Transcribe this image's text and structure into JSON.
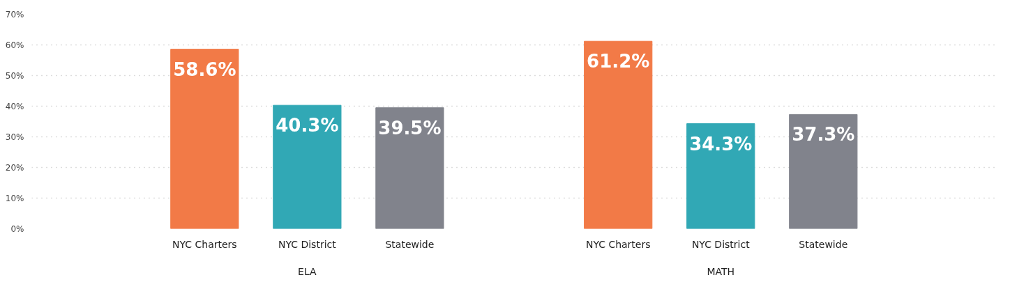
{
  "chart_data": {
    "type": "bar",
    "categories": [
      "ELA",
      "MATH"
    ],
    "series": [
      {
        "name": "NYC Charters",
        "color": "#f27a47",
        "values": [
          58.6,
          61.2
        ],
        "value_labels": [
          "58.6%",
          "61.2%"
        ]
      },
      {
        "name": "NYC District",
        "color": "#31a8b5",
        "values": [
          40.3,
          34.3
        ],
        "value_labels": [
          "40.3%",
          "34.3%"
        ]
      },
      {
        "name": "Statewide",
        "color": "#81838c",
        "values": [
          39.5,
          37.3
        ],
        "value_labels": [
          "39.5%",
          "37.3%"
        ]
      }
    ],
    "ylim": [
      0,
      70
    ],
    "yticks": [
      {
        "value": 0,
        "label": "0%"
      },
      {
        "value": 10,
        "label": "10%"
      },
      {
        "value": 20,
        "label": "20%"
      },
      {
        "value": 30,
        "label": "30%"
      },
      {
        "value": 40,
        "label": "40%"
      },
      {
        "value": 50,
        "label": "50%"
      },
      {
        "value": 60,
        "label": "60%"
      },
      {
        "value": 70,
        "label": "70%"
      }
    ],
    "grid": "y"
  }
}
